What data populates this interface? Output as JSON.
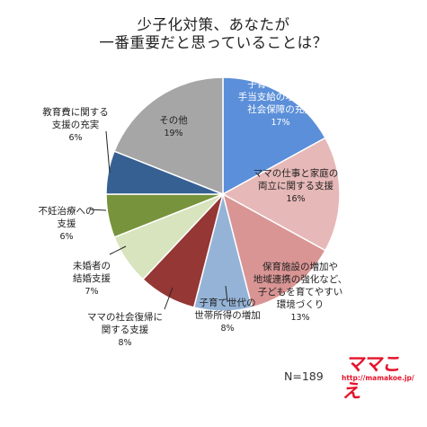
{
  "header": {
    "title_line1": "少子化対策、あなたが",
    "title_line2": "一番重要だと思っていることは？"
  },
  "footnote": "N=189",
  "logo": {
    "brand_text": "ママこえ",
    "url": "http://mamakoe.jp/",
    "color": "#e5132b"
  },
  "chart_data": {
    "type": "pie",
    "title": "少子化対策、あなたが一番重要だと思っていることは？",
    "start_angle": "12 o'clock, clockwise",
    "slices": [
      {
        "label": [
          "子育て世帯への",
          "手当支給の増額など",
          "社会保障の充実"
        ],
        "value": 17,
        "value_label": "17%",
        "color": "#5b8fd9",
        "label_color": "#ffffff"
      },
      {
        "label": [
          "ママの仕事と家庭の",
          "両立に関する支援"
        ],
        "value": 16,
        "value_label": "16%",
        "color": "#e6b8b7",
        "label_color": "#222222"
      },
      {
        "label": [
          "保育施設の増加や",
          "地域連携の強化など、",
          "子どもを育てやすい",
          "環境づくり"
        ],
        "value": 13,
        "value_label": "13%",
        "color": "#d99594",
        "label_color": "#222222"
      },
      {
        "label": [
          "子育て世代の",
          "世帯所得の増加"
        ],
        "value": 8,
        "value_label": "8%",
        "color": "#95b3d7",
        "label_color": "#222222"
      },
      {
        "label": [
          "ママの社会復帰に",
          "関する支援"
        ],
        "value": 8,
        "value_label": "8%",
        "color": "#953735",
        "label_color": "#222222"
      },
      {
        "label": [
          "未婚者の",
          "結婚支援"
        ],
        "value": 7,
        "value_label": "7%",
        "color": "#d7e4bd",
        "label_color": "#222222"
      },
      {
        "label": [
          "不妊治療への",
          "支援"
        ],
        "value": 6,
        "value_label": "6%",
        "color": "#77933c",
        "label_color": "#222222"
      },
      {
        "label": [
          "教育費に関する",
          "支援の充実"
        ],
        "value": 6,
        "value_label": "6%",
        "color": "#366092",
        "label_color": "#222222"
      },
      {
        "label": [
          "その他"
        ],
        "value": 19,
        "value_label": "19%",
        "color": "#a6a6a6",
        "label_color": "#222222"
      }
    ]
  }
}
